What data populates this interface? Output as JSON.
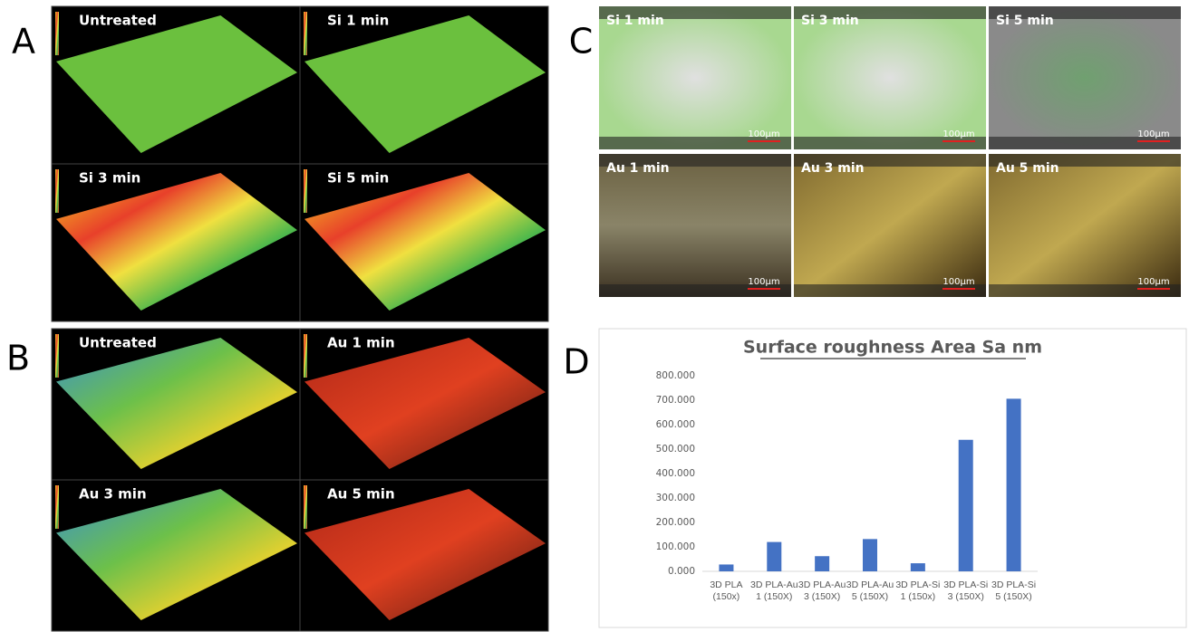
{
  "panel_labels": [
    "A",
    "B",
    "C",
    "D"
  ],
  "panel_a_labels": [
    "Untreated",
    "Si 1 min",
    "Si 3 min",
    "Si 5 min"
  ],
  "panel_b_labels": [
    "Untreated",
    "Au 1 min",
    "Au 3 min",
    "Au 5 min"
  ],
  "panel_c_labels": [
    "Si 1 min",
    "Si 3 min",
    "Si 5 min",
    "Au 1 min",
    "Au 3 min",
    "Au 5 min"
  ],
  "panel_c_scale": "100µm",
  "chart_data": {
    "type": "bar",
    "title": "Surface roughness Area Sa nm",
    "categories": [
      "3D PLA (150x)",
      "3D PLA-Au 1 (150X)",
      "3D PLA-Au 3 (150X)",
      "3D PLA-Au 5 (150X)",
      "3D PLA-Si 1 (150x)",
      "3D PLA-Si 3 (150X)",
      "3D PLA-Si 5 (150X)"
    ],
    "values": [
      28,
      120,
      62,
      132,
      33,
      538,
      706
    ],
    "color": "#4472c4",
    "ylim": [
      0,
      800
    ],
    "yticks": [
      {
        "value": 0,
        "label": "0.000"
      },
      {
        "value": 100,
        "label": "100.000"
      },
      {
        "value": 200,
        "label": "200.000"
      },
      {
        "value": 300,
        "label": "300.000"
      },
      {
        "value": 400,
        "label": "400.000"
      },
      {
        "value": 500,
        "label": "500.000"
      },
      {
        "value": 600,
        "label": "600.000"
      },
      {
        "value": 700,
        "label": "700.000"
      },
      {
        "value": 800,
        "label": "800.000"
      }
    ]
  }
}
